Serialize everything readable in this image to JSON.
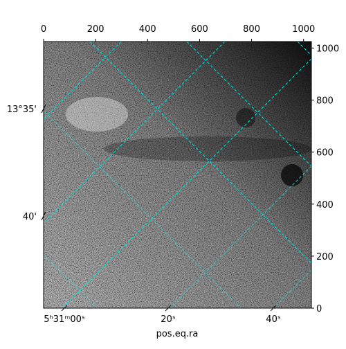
{
  "chart_data": {
    "type": "image",
    "xlabel": "pos.eq.ra",
    "xlim": [
      0,
      1030
    ],
    "xticks": [
      0,
      200,
      400,
      600,
      800,
      1000
    ],
    "ylim": [
      0,
      1025
    ],
    "yticks": [
      0,
      200,
      400,
      600,
      800,
      1000
    ],
    "dec_labels": [
      "13°35'",
      "40'"
    ],
    "ra_labels": [
      "5ʰ31ᵐ00ˢ",
      "20ˢ",
      "40ˢ"
    ],
    "grid_color": "#00e5e5"
  }
}
